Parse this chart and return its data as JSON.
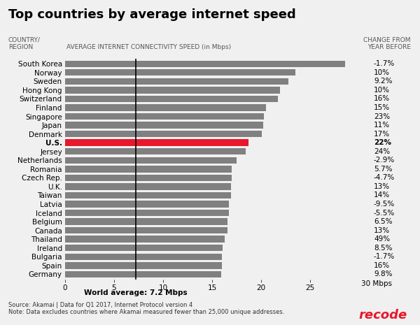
{
  "title": "Top countries by average internet speed",
  "col_header_left": "COUNTRY/\nREGION",
  "col_header_mid": "AVERAGE INTERNET CONNECTIVITY SPEED (in Mbps)",
  "col_header_right": "CHANGE FROM\nYEAR BEFORE",
  "countries": [
    "South Korea",
    "Norway",
    "Sweden",
    "Hong Kong",
    "Switzerland",
    "Finland",
    "Singapore",
    "Japan",
    "Denmark",
    "U.S.",
    "Jersey",
    "Netherlands",
    "Romania",
    "Czech Rep.",
    "U.K.",
    "Taiwan",
    "Latvia",
    "Iceland",
    "Belgium",
    "Canada",
    "Thailand",
    "Ireland",
    "Bulgaria",
    "Spain",
    "Germany"
  ],
  "values": [
    28.6,
    23.5,
    22.8,
    21.9,
    21.7,
    20.5,
    20.3,
    20.2,
    20.1,
    18.7,
    18.4,
    17.5,
    17.0,
    17.0,
    16.9,
    16.9,
    16.7,
    16.7,
    16.6,
    16.6,
    16.3,
    16.1,
    16.0,
    16.0,
    15.9
  ],
  "changes": [
    "-1.7%",
    "10%",
    "9.2%",
    "10%",
    "16%",
    "15%",
    "23%",
    "11%",
    "17%",
    "22%",
    "24%",
    "-2.9%",
    "5.7%",
    "-4.7%",
    "13%",
    "14%",
    "-9.5%",
    "-5.5%",
    "6.5%",
    "13%",
    "49%",
    "8.5%",
    "-1.7%",
    "16%",
    "9.8%"
  ],
  "us_index": 9,
  "bar_color": "#808080",
  "us_bar_color": "#e8172c",
  "world_avg": 7.2,
  "xlim": [
    0,
    30
  ],
  "xticks": [
    0,
    5,
    10,
    15,
    20,
    25
  ],
  "xlabel_end": "30 Mbps",
  "world_avg_label": "World average: 7.2 Mbps",
  "source_text": "Source: Akamai | Data for Q1 2017, Internet Protocol version 4\nNote: Data excludes countries where Akamai measured fewer than 25,000 unique addresses.",
  "recode_text": "recode",
  "background_color": "#f0f0f0",
  "bar_height": 0.75
}
